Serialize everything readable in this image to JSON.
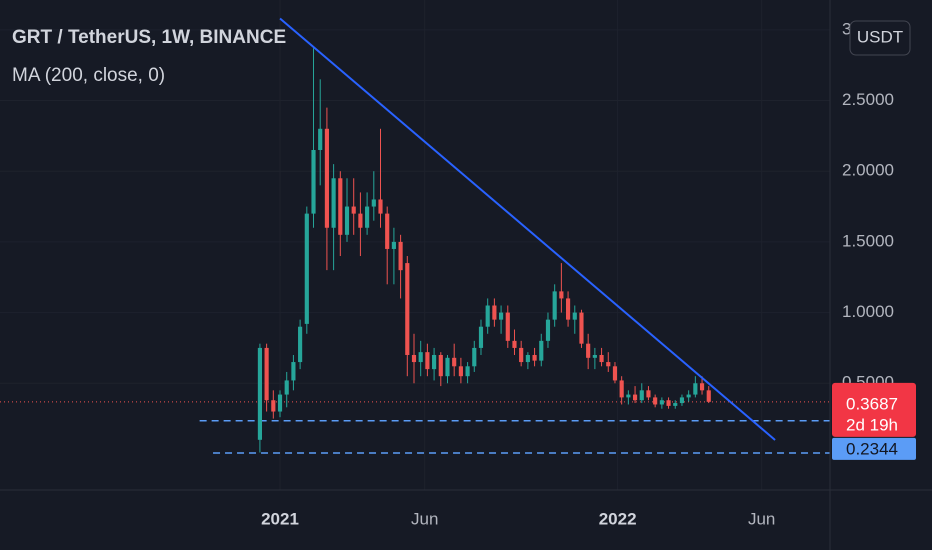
{
  "chart_data": {
    "type": "candlestick",
    "title": "GRT / TetherUS, 1W, BINANCE",
    "subtitle": "MA (200, close, 0)",
    "currency": "USDT",
    "up_color": "#26a69a",
    "down_color": "#ef5350",
    "x": [
      0,
      1,
      2,
      3,
      4,
      5,
      6,
      7,
      8,
      9,
      10,
      11,
      12,
      13,
      14,
      15,
      16,
      17,
      18,
      19,
      20,
      21,
      22,
      23,
      24,
      25,
      26,
      27,
      28,
      29,
      30,
      31,
      32,
      33,
      34,
      35,
      36,
      37,
      38,
      39,
      40,
      41,
      42,
      43,
      44,
      45,
      46,
      47,
      48,
      49,
      50,
      51,
      52,
      53,
      54,
      55,
      56,
      57,
      58,
      59,
      60,
      61,
      62,
      63,
      64,
      65,
      66,
      67
    ],
    "open": [
      0.1,
      0.75,
      0.38,
      0.3,
      0.42,
      0.52,
      0.65,
      0.92,
      1.7,
      2.15,
      2.3,
      1.6,
      1.95,
      1.55,
      1.75,
      1.7,
      1.6,
      1.75,
      1.8,
      1.7,
      1.45,
      1.5,
      1.35,
      0.7,
      0.65,
      0.72,
      0.6,
      0.7,
      0.55,
      0.68,
      0.62,
      0.55,
      0.62,
      0.75,
      0.9,
      1.05,
      0.95,
      1.0,
      0.8,
      0.75,
      0.65,
      0.7,
      0.66,
      0.8,
      0.95,
      1.15,
      1.1,
      0.95,
      1.0,
      0.78,
      0.68,
      0.7,
      0.65,
      0.62,
      0.52,
      0.4,
      0.42,
      0.38,
      0.45,
      0.4,
      0.35,
      0.38,
      0.34,
      0.36,
      0.4,
      0.42,
      0.5,
      0.45
    ],
    "high": [
      0.78,
      0.78,
      0.45,
      0.45,
      0.58,
      0.7,
      0.95,
      1.75,
      2.87,
      2.65,
      2.45,
      2.05,
      2.0,
      1.95,
      1.95,
      1.85,
      1.85,
      2.0,
      2.3,
      1.75,
      1.6,
      1.55,
      1.4,
      0.85,
      0.8,
      0.78,
      0.75,
      0.72,
      0.7,
      0.78,
      0.68,
      0.65,
      0.8,
      0.95,
      1.1,
      1.1,
      1.05,
      1.05,
      0.88,
      0.8,
      0.72,
      0.75,
      0.85,
      1.0,
      1.2,
      1.35,
      1.15,
      1.05,
      1.02,
      0.85,
      0.75,
      0.75,
      0.72,
      0.65,
      0.55,
      0.45,
      0.48,
      0.5,
      0.48,
      0.42,
      0.4,
      0.4,
      0.38,
      0.42,
      0.45,
      0.55,
      0.55,
      0.48
    ],
    "low": [
      0.01,
      0.3,
      0.25,
      0.26,
      0.33,
      0.45,
      0.6,
      0.85,
      1.6,
      1.9,
      1.3,
      1.3,
      1.4,
      1.5,
      1.55,
      1.4,
      1.55,
      1.65,
      1.6,
      1.2,
      1.2,
      1.1,
      0.55,
      0.5,
      0.55,
      0.55,
      0.52,
      0.48,
      0.5,
      0.55,
      0.5,
      0.5,
      0.58,
      0.7,
      0.85,
      0.9,
      0.85,
      0.75,
      0.7,
      0.62,
      0.6,
      0.62,
      0.62,
      0.75,
      0.9,
      1.0,
      0.9,
      0.85,
      0.75,
      0.6,
      0.6,
      0.62,
      0.58,
      0.5,
      0.35,
      0.35,
      0.36,
      0.36,
      0.38,
      0.33,
      0.32,
      0.32,
      0.32,
      0.34,
      0.37,
      0.4,
      0.42,
      0.36
    ],
    "close": [
      0.75,
      0.38,
      0.3,
      0.42,
      0.52,
      0.65,
      0.9,
      1.7,
      2.15,
      2.3,
      1.6,
      1.95,
      1.55,
      1.75,
      1.7,
      1.6,
      1.75,
      1.8,
      1.7,
      1.45,
      1.5,
      1.3,
      0.7,
      0.65,
      0.72,
      0.6,
      0.7,
      0.55,
      0.68,
      0.62,
      0.55,
      0.62,
      0.75,
      0.9,
      1.05,
      0.95,
      1.0,
      0.8,
      0.75,
      0.65,
      0.7,
      0.66,
      0.8,
      0.95,
      1.15,
      1.1,
      0.95,
      1.0,
      0.78,
      0.68,
      0.7,
      0.65,
      0.62,
      0.52,
      0.4,
      0.42,
      0.38,
      0.45,
      0.4,
      0.35,
      0.38,
      0.34,
      0.36,
      0.4,
      0.42,
      0.5,
      0.45,
      0.3687
    ],
    "xlim": [
      -38.8,
      85.1
    ],
    "xticks": [
      {
        "value": 3,
        "label": "2021"
      },
      {
        "value": 24.6,
        "label": "Jun"
      },
      {
        "value": 53.4,
        "label": "2022"
      },
      {
        "value": 74.9,
        "label": "Jun"
      }
    ],
    "ylim": [
      -0.255,
      3.211
    ],
    "yticks": [
      {
        "value": 0.5,
        "label": "0.5000"
      },
      {
        "value": 1,
        "label": "1.0000"
      },
      {
        "value": 1.5,
        "label": "1.5000"
      },
      {
        "value": 2,
        "label": "2.0000"
      },
      {
        "value": 2.5,
        "label": "2.5000"
      },
      {
        "value": 3,
        "label": "3.0000"
      }
    ],
    "grid": true,
    "last_price": 0.3687,
    "countdown": "2d 19h",
    "trend_line": {
      "x": [
        3.0,
        76.9
      ],
      "y": [
        3.08,
        0.099
      ],
      "color": "#2962ff"
    },
    "horizontal_lines": [
      {
        "x_start": -9,
        "value": 0.2344,
        "label": "0.2344"
      },
      {
        "x_start": -7,
        "value": 0.007
      }
    ]
  }
}
